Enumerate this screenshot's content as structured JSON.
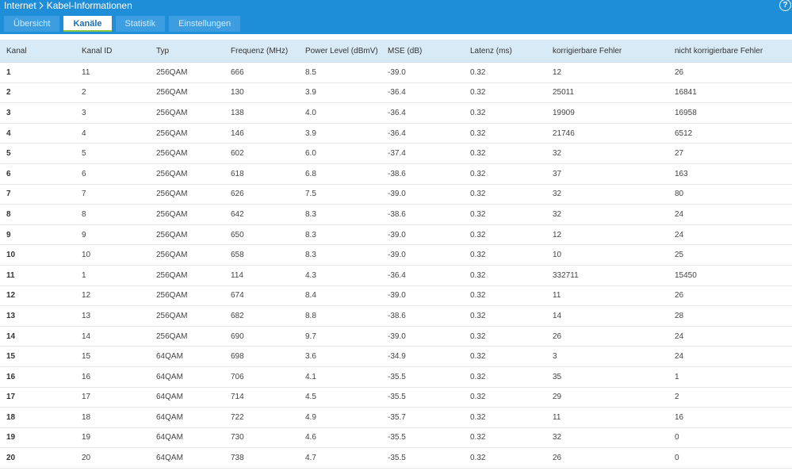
{
  "header": {
    "breadcrumb": [
      "Internet",
      "Kabel-Informationen"
    ],
    "help": "?"
  },
  "tabs": [
    "Übersicht",
    "Kanäle",
    "Statistik",
    "Einstellungen"
  ],
  "table": {
    "columns": [
      "Kanal",
      "Kanal ID",
      "Typ",
      "Frequenz (MHz)",
      "Power Level (dBmV)",
      "MSE (dB)",
      "Latenz (ms)",
      "korrigierbare Fehler",
      "nicht korrigierbare Fehler"
    ],
    "rows": [
      [
        "1",
        "11",
        "256QAM",
        "666",
        "8.5",
        "-39.0",
        "0.32",
        "12",
        "26"
      ],
      [
        "2",
        "2",
        "256QAM",
        "130",
        "3.9",
        "-36.4",
        "0.32",
        "25011",
        "16841"
      ],
      [
        "3",
        "3",
        "256QAM",
        "138",
        "4.0",
        "-36.4",
        "0.32",
        "19909",
        "16958"
      ],
      [
        "4",
        "4",
        "256QAM",
        "146",
        "3.9",
        "-36.4",
        "0.32",
        "21746",
        "6512"
      ],
      [
        "5",
        "5",
        "256QAM",
        "602",
        "6.0",
        "-37.4",
        "0.32",
        "32",
        "27"
      ],
      [
        "6",
        "6",
        "256QAM",
        "618",
        "6.8",
        "-38.6",
        "0.32",
        "37",
        "163"
      ],
      [
        "7",
        "7",
        "256QAM",
        "626",
        "7.5",
        "-39.0",
        "0.32",
        "32",
        "80"
      ],
      [
        "8",
        "8",
        "256QAM",
        "642",
        "8.3",
        "-38.6",
        "0.32",
        "32",
        "24"
      ],
      [
        "9",
        "9",
        "256QAM",
        "650",
        "8.3",
        "-39.0",
        "0.32",
        "12",
        "24"
      ],
      [
        "10",
        "10",
        "256QAM",
        "658",
        "8.3",
        "-39.0",
        "0.32",
        "10",
        "25"
      ],
      [
        "11",
        "1",
        "256QAM",
        "114",
        "4.3",
        "-36.4",
        "0.32",
        "332711",
        "15450"
      ],
      [
        "12",
        "12",
        "256QAM",
        "674",
        "8.4",
        "-39.0",
        "0.32",
        "11",
        "26"
      ],
      [
        "13",
        "13",
        "256QAM",
        "682",
        "8.8",
        "-38.6",
        "0.32",
        "14",
        "28"
      ],
      [
        "14",
        "14",
        "256QAM",
        "690",
        "9.7",
        "-39.0",
        "0.32",
        "26",
        "24"
      ],
      [
        "15",
        "15",
        "64QAM",
        "698",
        "3.6",
        "-34.9",
        "0.32",
        "3",
        "24"
      ],
      [
        "16",
        "16",
        "64QAM",
        "706",
        "4.1",
        "-35.5",
        "0.32",
        "35",
        "1"
      ],
      [
        "17",
        "17",
        "64QAM",
        "714",
        "4.5",
        "-35.5",
        "0.32",
        "29",
        "2"
      ],
      [
        "18",
        "18",
        "64QAM",
        "722",
        "4.9",
        "-35.7",
        "0.32",
        "11",
        "16"
      ],
      [
        "19",
        "19",
        "64QAM",
        "730",
        "4.6",
        "-35.5",
        "0.32",
        "32",
        "0"
      ],
      [
        "20",
        "20",
        "64QAM",
        "738",
        "4.7",
        "-35.5",
        "0.32",
        "26",
        "0"
      ]
    ]
  }
}
